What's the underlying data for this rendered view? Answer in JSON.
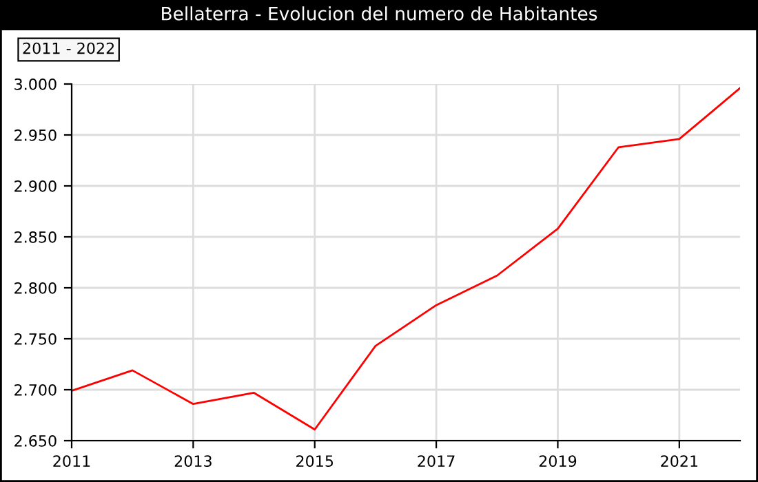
{
  "chart_data": {
    "type": "line",
    "title": "Bellaterra - Evolucion del numero de Habitantes",
    "annotations": [
      "2011 - 2022"
    ],
    "x": [
      2011,
      2012,
      2013,
      2014,
      2015,
      2016,
      2017,
      2018,
      2019,
      2020,
      2021,
      2022
    ],
    "series": [
      {
        "color": "#ff0000",
        "values": [
          2699,
          2719,
          2686,
          2697,
          2661,
          2743,
          2783,
          2812,
          2858,
          2938,
          2946,
          2996
        ]
      }
    ],
    "xlim": [
      2011,
      2022
    ],
    "xticks": [
      2011,
      2013,
      2015,
      2017,
      2019,
      2021
    ],
    "ylim": [
      2650,
      3000
    ],
    "yticks": [
      {
        "value": 2650,
        "label": "2.650"
      },
      {
        "value": 2700,
        "label": "2.700"
      },
      {
        "value": 2750,
        "label": "2.750"
      },
      {
        "value": 2800,
        "label": "2.800"
      },
      {
        "value": 2850,
        "label": "2.850"
      },
      {
        "value": 2900,
        "label": "2.900"
      },
      {
        "value": 2950,
        "label": "2.950"
      },
      {
        "value": 3000,
        "label": "3.000"
      }
    ],
    "grid": true,
    "legend": false,
    "marker": "none",
    "line_style": "solid"
  }
}
